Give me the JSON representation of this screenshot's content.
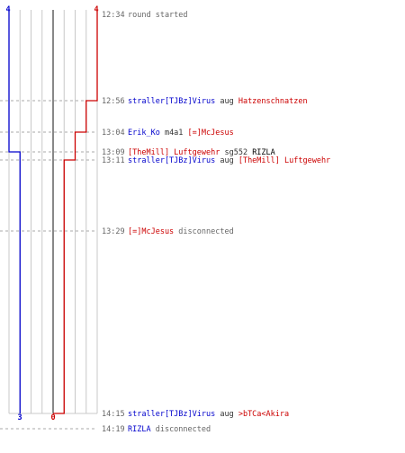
{
  "colors": {
    "team_left": "#0000cc",
    "team_right": "#cc0000",
    "grid": "#c8c8c8",
    "center_line": "#555555",
    "time": "#666666",
    "verb": "#333333",
    "status": "#666666",
    "neutral_name": "#000000"
  },
  "score_axis": {
    "min": -4,
    "max": 4
  },
  "scores": {
    "top_left": "4",
    "top_right": "4",
    "bottom_left": "3",
    "bottom_right": "0"
  },
  "events": [
    {
      "time": "12:34",
      "parts": [
        {
          "text": "round started",
          "role": "status"
        }
      ],
      "score_blue": 4,
      "score_red": 4
    },
    {
      "time": "12:56",
      "parts": [
        {
          "text": "straller[TJBz]Virus",
          "role": "team_left"
        },
        {
          "text": " aug ",
          "role": "verb"
        },
        {
          "text": "Hatzenschnatzen",
          "role": "team_right"
        }
      ],
      "score_blue": 4,
      "score_red": 3
    },
    {
      "time": "13:04",
      "parts": [
        {
          "text": "Erik_Ko",
          "role": "team_left"
        },
        {
          "text": " m4a1 ",
          "role": "verb"
        },
        {
          "text": "[=]McJesus",
          "role": "team_right"
        }
      ],
      "score_blue": 4,
      "score_red": 2
    },
    {
      "time": "13:09",
      "parts": [
        {
          "text": "[TheMill] Luftgewehr",
          "role": "team_right"
        },
        {
          "text": " sg552 ",
          "role": "verb"
        },
        {
          "text": "RIZLA",
          "role": "neutral_name"
        }
      ],
      "score_blue": 3,
      "score_red": 2
    },
    {
      "time": "13:11",
      "parts": [
        {
          "text": "straller[TJBz]Virus",
          "role": "team_left"
        },
        {
          "text": " aug ",
          "role": "verb"
        },
        {
          "text": "[TheMill] Luftgewehr",
          "role": "team_right"
        }
      ],
      "score_blue": 3,
      "score_red": 1
    },
    {
      "time": "13:29",
      "parts": [
        {
          "text": "[=]McJesus",
          "role": "team_right"
        },
        {
          "text": " disconnected",
          "role": "status"
        }
      ],
      "score_blue": 3,
      "score_red": 1
    },
    {
      "time": "14:15",
      "parts": [
        {
          "text": "straller[TJBz]Virus",
          "role": "team_left"
        },
        {
          "text": " aug ",
          "role": "verb"
        },
        {
          "text": ">bTCa<Akira",
          "role": "team_right"
        }
      ],
      "score_blue": 3,
      "score_red": 0
    },
    {
      "time": "14:19",
      "parts": [
        {
          "text": "RIZLA",
          "role": "team_left"
        },
        {
          "text": " disconnected",
          "role": "status"
        }
      ],
      "score_blue": 3,
      "score_red": 0
    }
  ]
}
